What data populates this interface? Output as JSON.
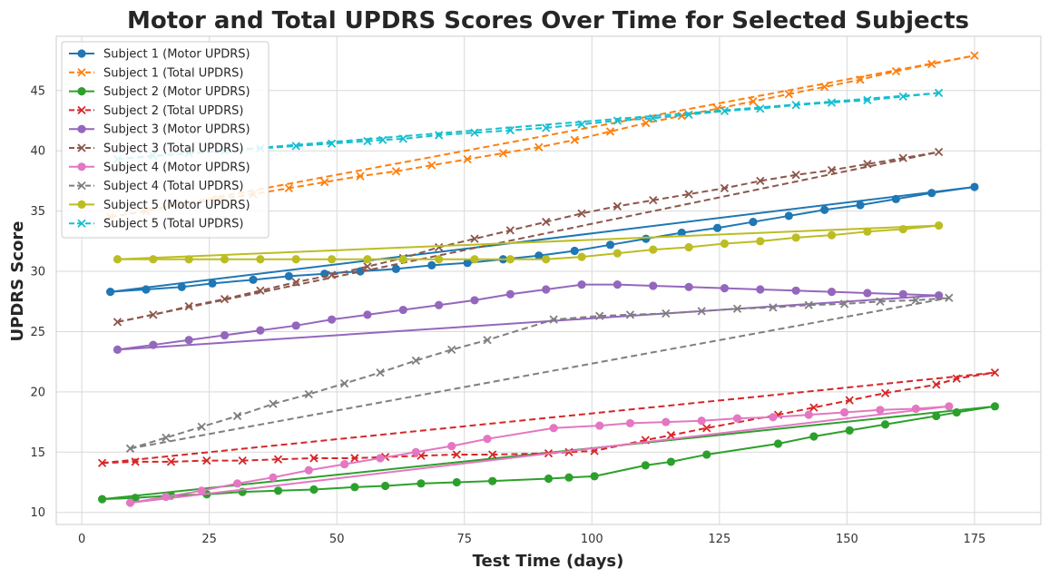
{
  "chart_data": {
    "type": "line",
    "title": "Motor and Total UPDRS Scores Over Time for Selected Subjects",
    "xlabel": "Test Time (days)",
    "ylabel": "UPDRS Score",
    "xlim": [
      -5,
      188
    ],
    "ylim": [
      9,
      49.5
    ],
    "xticks": [
      0,
      25,
      50,
      75,
      100,
      125,
      150,
      175
    ],
    "yticks": [
      10,
      15,
      20,
      25,
      30,
      35,
      40,
      45
    ],
    "grid": true,
    "legend_position": "top-left",
    "series": [
      {
        "name": "Subject 1 (Motor UPDRS)",
        "color": "#1f77b4",
        "marker": "circle",
        "dash": "solid",
        "x": [
          5.6,
          12.6,
          19.6,
          25.6,
          33.6,
          40.6,
          47.6,
          54.6,
          61.6,
          68.6,
          75.6,
          82.6,
          89.6,
          96.6,
          103.6,
          110.6,
          117.6,
          124.6,
          131.6,
          138.6,
          145.6,
          152.6,
          159.6,
          166.6,
          175
        ],
        "y": [
          28.3,
          28.5,
          28.7,
          29.0,
          29.3,
          29.6,
          29.8,
          30.0,
          30.2,
          30.5,
          30.7,
          31.0,
          31.3,
          31.7,
          32.2,
          32.7,
          33.2,
          33.6,
          34.1,
          34.6,
          35.1,
          35.5,
          36.0,
          36.5,
          37.0
        ]
      },
      {
        "name": "Subject 1 (Total UPDRS)",
        "color": "#ff7f0e",
        "marker": "x",
        "dash": "dashed",
        "x": [
          5.6,
          12.6,
          19.6,
          26.6,
          33.6,
          40.6,
          47.6,
          54.6,
          61.6,
          68.6,
          75.6,
          82.6,
          89.6,
          96.6,
          103.6,
          110.6,
          117.6,
          124.6,
          131.6,
          138.6,
          145.6,
          152.6,
          159.6,
          166.6,
          175
        ],
        "y": [
          34.5,
          35.0,
          35.5,
          36.0,
          36.4,
          36.9,
          37.4,
          37.9,
          38.3,
          38.8,
          39.3,
          39.8,
          40.3,
          40.9,
          41.6,
          42.3,
          42.9,
          43.5,
          44.1,
          44.7,
          45.3,
          45.9,
          46.6,
          47.2,
          47.9
        ]
      },
      {
        "name": "Subject 2 (Motor UPDRS)",
        "color": "#2ca02c",
        "marker": "circle",
        "dash": "solid",
        "x": [
          4,
          10.5,
          17.5,
          24.5,
          31.5,
          38.5,
          45.5,
          53.5,
          59.5,
          66.5,
          73.5,
          80.5,
          91.5,
          95.5,
          100.5,
          110.5,
          115.5,
          122.5,
          136.5,
          143.5,
          150.5,
          157.5,
          167.5,
          171.5,
          179
        ],
        "y": [
          11.1,
          11.2,
          11.4,
          11.5,
          11.7,
          11.8,
          11.9,
          12.1,
          12.2,
          12.4,
          12.5,
          12.6,
          12.8,
          12.9,
          13.0,
          13.9,
          14.2,
          14.8,
          15.7,
          16.3,
          16.8,
          17.3,
          18.0,
          18.3,
          18.8
        ]
      },
      {
        "name": "Subject 2 (Total UPDRS)",
        "color": "#d62728",
        "marker": "x",
        "dash": "dashed",
        "x": [
          4,
          10.5,
          17.5,
          24.5,
          31.5,
          38.5,
          45.5,
          53.5,
          59.5,
          66.5,
          73.5,
          80.5,
          91.5,
          95.5,
          100.5,
          110.5,
          115.5,
          122.5,
          136.5,
          143.5,
          150.5,
          157.5,
          167.5,
          171.5,
          179
        ],
        "y": [
          14.1,
          14.2,
          14.2,
          14.3,
          14.3,
          14.4,
          14.5,
          14.5,
          14.6,
          14.7,
          14.8,
          14.8,
          14.9,
          15.0,
          15.1,
          16.0,
          16.4,
          17.0,
          18.1,
          18.7,
          19.3,
          19.9,
          20.6,
          21.1,
          21.6
        ]
      },
      {
        "name": "Subject 3 (Motor UPDRS)",
        "color": "#9467bd",
        "marker": "circle",
        "dash": "solid",
        "x": [
          7,
          14,
          21,
          28,
          35,
          42,
          49,
          56,
          63,
          70,
          77,
          84,
          91,
          98,
          105,
          112,
          119,
          126,
          133,
          140,
          147,
          154,
          161,
          168
        ],
        "y": [
          23.5,
          23.9,
          24.3,
          24.7,
          25.1,
          25.5,
          26.0,
          26.4,
          26.8,
          27.2,
          27.6,
          28.1,
          28.5,
          28.9,
          28.9,
          28.8,
          28.7,
          28.6,
          28.5,
          28.4,
          28.3,
          28.2,
          28.1,
          28.0
        ]
      },
      {
        "name": "Subject 3 (Total UPDRS)",
        "color": "#8c564b",
        "marker": "x",
        "dash": "dashed",
        "x": [
          7,
          14,
          21,
          28,
          35,
          42,
          49,
          56,
          63,
          70,
          77,
          84,
          91,
          98,
          105,
          112,
          119,
          126,
          133,
          140,
          147,
          154,
          161,
          168
        ],
        "y": [
          25.8,
          26.4,
          27.1,
          27.7,
          28.4,
          29.1,
          29.7,
          30.4,
          31.1,
          32.0,
          32.7,
          33.4,
          34.1,
          34.8,
          35.4,
          35.9,
          36.4,
          36.9,
          37.5,
          38.0,
          38.4,
          38.9,
          39.4,
          39.9
        ]
      },
      {
        "name": "Subject 4 (Motor UPDRS)",
        "color": "#e377c2",
        "marker": "circle",
        "dash": "solid",
        "x": [
          9.5,
          16.5,
          23.5,
          30.5,
          37.5,
          44.5,
          51.5,
          58.5,
          65.5,
          72.5,
          79.5,
          92.5,
          101.5,
          107.5,
          114.5,
          121.5,
          128.5,
          135.5,
          142.5,
          149.5,
          156.5,
          163.5,
          170
        ],
        "y": [
          10.8,
          11.3,
          11.8,
          12.4,
          12.9,
          13.5,
          14.0,
          14.5,
          15.0,
          15.5,
          16.1,
          17.0,
          17.2,
          17.4,
          17.5,
          17.6,
          17.8,
          17.9,
          18.1,
          18.3,
          18.5,
          18.6,
          18.8
        ]
      },
      {
        "name": "Subject 4 (Total UPDRS)",
        "color": "#7f7f7f",
        "marker": "x",
        "dash": "dashed",
        "x": [
          9.5,
          16.5,
          23.5,
          30.5,
          37.5,
          44.5,
          51.5,
          58.5,
          65.5,
          72.5,
          79.5,
          92.5,
          101.5,
          107.5,
          114.5,
          121.5,
          128.5,
          135.5,
          142.5,
          149.5,
          156.5,
          163.5,
          170
        ],
        "y": [
          15.3,
          16.2,
          17.1,
          18.0,
          19.0,
          19.8,
          20.7,
          21.6,
          22.6,
          23.5,
          24.3,
          26.0,
          26.3,
          26.4,
          26.5,
          26.7,
          26.9,
          27.0,
          27.2,
          27.3,
          27.5,
          27.6,
          27.8
        ]
      },
      {
        "name": "Subject 5 (Motor UPDRS)",
        "color": "#bcbd22",
        "marker": "circle",
        "dash": "solid",
        "x": [
          7,
          14,
          21,
          28,
          35,
          42,
          49,
          56,
          63,
          70,
          77,
          84,
          91,
          98,
          105,
          112,
          119,
          126,
          133,
          140,
          147,
          154,
          161,
          168
        ],
        "y": [
          31.0,
          31.0,
          31.0,
          31.0,
          31.0,
          31.0,
          31.0,
          31.0,
          31.0,
          31.0,
          31.0,
          31.0,
          31.0,
          31.2,
          31.5,
          31.8,
          32.0,
          32.3,
          32.5,
          32.8,
          33.0,
          33.3,
          33.5,
          33.8
        ]
      },
      {
        "name": "Subject 5 (Total UPDRS)",
        "color": "#17becf",
        "marker": "x",
        "dash": "dashed",
        "x": [
          7,
          14,
          21,
          28,
          35,
          42,
          49,
          56,
          59,
          63,
          70,
          77,
          84,
          91,
          98,
          105,
          112,
          119,
          126,
          133,
          140,
          147,
          154,
          161,
          168
        ],
        "y": [
          39.3,
          39.6,
          39.8,
          40.0,
          40.2,
          40.4,
          40.6,
          40.8,
          40.9,
          41.0,
          41.3,
          41.5,
          41.7,
          41.9,
          42.2,
          42.5,
          42.7,
          43.0,
          43.3,
          43.5,
          43.8,
          44.0,
          44.2,
          44.5,
          44.8
        ]
      }
    ]
  }
}
